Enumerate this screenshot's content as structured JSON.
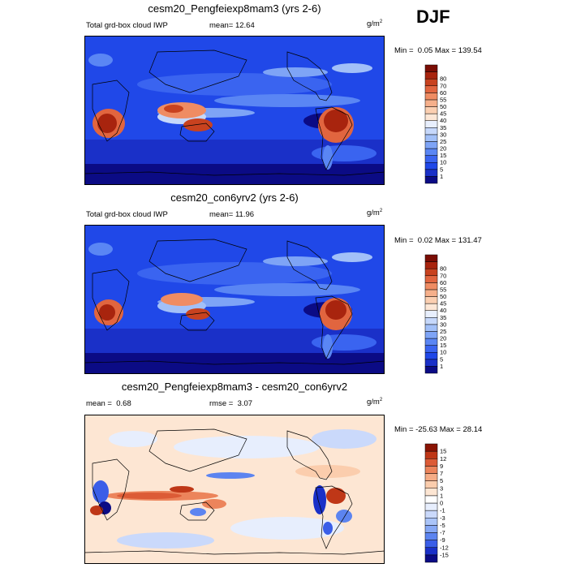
{
  "season": "DJF",
  "colors": {
    "seq": [
      "#0b0b85",
      "#1a30c8",
      "#2048e8",
      "#3a64f0",
      "#5a86f4",
      "#7ea4f6",
      "#a2c0f8",
      "#c6d8fb",
      "#e8effd",
      "#fde7d6",
      "#fbcfb1",
      "#f6b08b",
      "#ef8c63",
      "#e1653f",
      "#c8421f",
      "#a8240e",
      "#7a0d04"
    ],
    "div": [
      "#0b0b85",
      "#1a30c8",
      "#3a5ee8",
      "#5c84f0",
      "#86a8f5",
      "#aac4f8",
      "#cad9fb",
      "#e7eefd",
      "#ffffff",
      "#fde6d3",
      "#fbcdad",
      "#f5ac86",
      "#ec845b",
      "#dc5b36",
      "#bf3717",
      "#8a1404"
    ]
  },
  "chart_data": [
    {
      "type": "heatmap",
      "title": "cesm20_Pengfeiexp8mam3 (yrs 2-6)",
      "left_label": "Total grd-box cloud IWP",
      "stat_label": "mean=",
      "stat_value": "12.64",
      "unit_base": "g/m",
      "unit_exp": "2",
      "min_label": "Min =",
      "min_value": "0.05",
      "max_label": "Max =",
      "max_value": "139.54",
      "levels": [
        "1",
        "5",
        "10",
        "15",
        "20",
        "25",
        "30",
        "35",
        "40",
        "45",
        "50",
        "55",
        "60",
        "70",
        "80"
      ]
    },
    {
      "type": "heatmap",
      "title": "cesm20_con6yrv2 (yrs 2-6)",
      "left_label": "Total grd-box cloud IWP",
      "stat_label": "mean=",
      "stat_value": "11.96",
      "unit_base": "g/m",
      "unit_exp": "2",
      "min_label": "Min =",
      "min_value": "0.02",
      "max_label": "Max =",
      "max_value": "131.47",
      "levels": [
        "1",
        "5",
        "10",
        "15",
        "20",
        "25",
        "30",
        "35",
        "40",
        "45",
        "50",
        "55",
        "60",
        "70",
        "80"
      ]
    },
    {
      "type": "heatmap",
      "title": "cesm20_Pengfeiexp8mam3 - cesm20_con6yrv2",
      "left_label": "mean =",
      "left_value": "0.68",
      "stat_label": "rmse =",
      "stat_value": "3.07",
      "unit_base": "g/m",
      "unit_exp": "2",
      "min_label": "Min =",
      "min_value": "-25.63",
      "max_label": "Max =",
      "max_value": "28.14",
      "levels": [
        "-15",
        "-12",
        "-9",
        "-7",
        "-5",
        "-3",
        "-1",
        "0",
        "1",
        "3",
        "5",
        "7",
        "9",
        "12",
        "15"
      ]
    }
  ]
}
